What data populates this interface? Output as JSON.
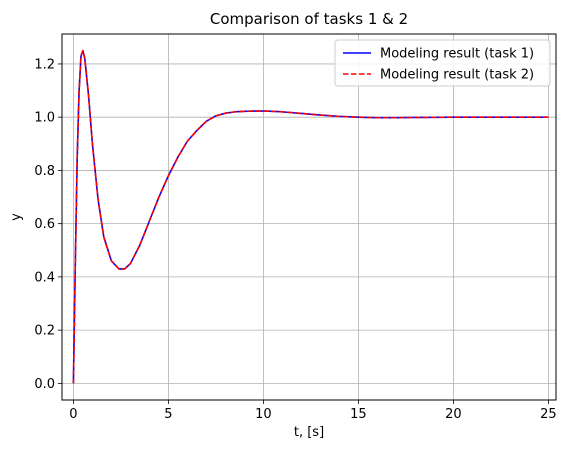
{
  "chart_data": {
    "type": "line",
    "title": "Comparison of tasks 1 & 2",
    "xlabel": "t, [s]",
    "ylabel": "y",
    "xlim": [
      -0.6,
      25.4
    ],
    "ylim": [
      -0.0625,
      1.3125
    ],
    "xticks": [
      0,
      5,
      10,
      15,
      20,
      25
    ],
    "yticks": [
      0.0,
      0.2,
      0.4,
      0.6,
      0.8,
      1.0,
      1.2
    ],
    "xtick_labels": [
      "0",
      "5",
      "10",
      "15",
      "20",
      "25"
    ],
    "ytick_labels": [
      "0.0",
      "0.2",
      "0.4",
      "0.6",
      "0.8",
      "1.0",
      "1.2"
    ],
    "grid": true,
    "legend": "top-right",
    "series": [
      {
        "name": "Modeling result (task 1)",
        "color": "#0000ff",
        "style": "solid",
        "x": [
          0,
          0.1,
          0.2,
          0.3,
          0.4,
          0.5,
          0.6,
          0.8,
          1.0,
          1.3,
          1.6,
          2.0,
          2.4,
          2.7,
          3.0,
          3.5,
          4.0,
          4.5,
          5.0,
          5.5,
          6.0,
          6.5,
          7.0,
          7.5,
          8.0,
          8.5,
          9.0,
          9.5,
          10.0,
          10.5,
          11.0,
          12.0,
          13.0,
          14.0,
          15.0,
          16.0,
          17.0,
          18.0,
          20.0,
          22.0,
          25.0
        ],
        "y": [
          0.0,
          0.45,
          0.85,
          1.1,
          1.23,
          1.25,
          1.22,
          1.08,
          0.9,
          0.69,
          0.55,
          0.46,
          0.43,
          0.43,
          0.45,
          0.52,
          0.61,
          0.7,
          0.78,
          0.85,
          0.91,
          0.95,
          0.985,
          1.005,
          1.015,
          1.02,
          1.022,
          1.023,
          1.023,
          1.022,
          1.02,
          1.014,
          1.008,
          1.003,
          1.0,
          0.998,
          0.998,
          0.999,
          1.0,
          1.0,
          1.0
        ]
      },
      {
        "name": "Modeling result (task 2)",
        "color": "#ff0000",
        "style": "dashed",
        "x": [
          0,
          0.1,
          0.2,
          0.3,
          0.4,
          0.5,
          0.6,
          0.8,
          1.0,
          1.3,
          1.6,
          2.0,
          2.4,
          2.7,
          3.0,
          3.5,
          4.0,
          4.5,
          5.0,
          5.5,
          6.0,
          6.5,
          7.0,
          7.5,
          8.0,
          8.5,
          9.0,
          9.5,
          10.0,
          10.5,
          11.0,
          12.0,
          13.0,
          14.0,
          15.0,
          16.0,
          17.0,
          18.0,
          20.0,
          22.0,
          25.0
        ],
        "y": [
          0.0,
          0.45,
          0.85,
          1.1,
          1.23,
          1.25,
          1.22,
          1.08,
          0.9,
          0.69,
          0.55,
          0.46,
          0.43,
          0.43,
          0.45,
          0.52,
          0.61,
          0.7,
          0.78,
          0.85,
          0.91,
          0.95,
          0.985,
          1.005,
          1.015,
          1.02,
          1.022,
          1.023,
          1.023,
          1.022,
          1.02,
          1.014,
          1.008,
          1.003,
          1.0,
          0.998,
          0.998,
          0.999,
          1.0,
          1.0,
          1.0
        ]
      }
    ]
  }
}
